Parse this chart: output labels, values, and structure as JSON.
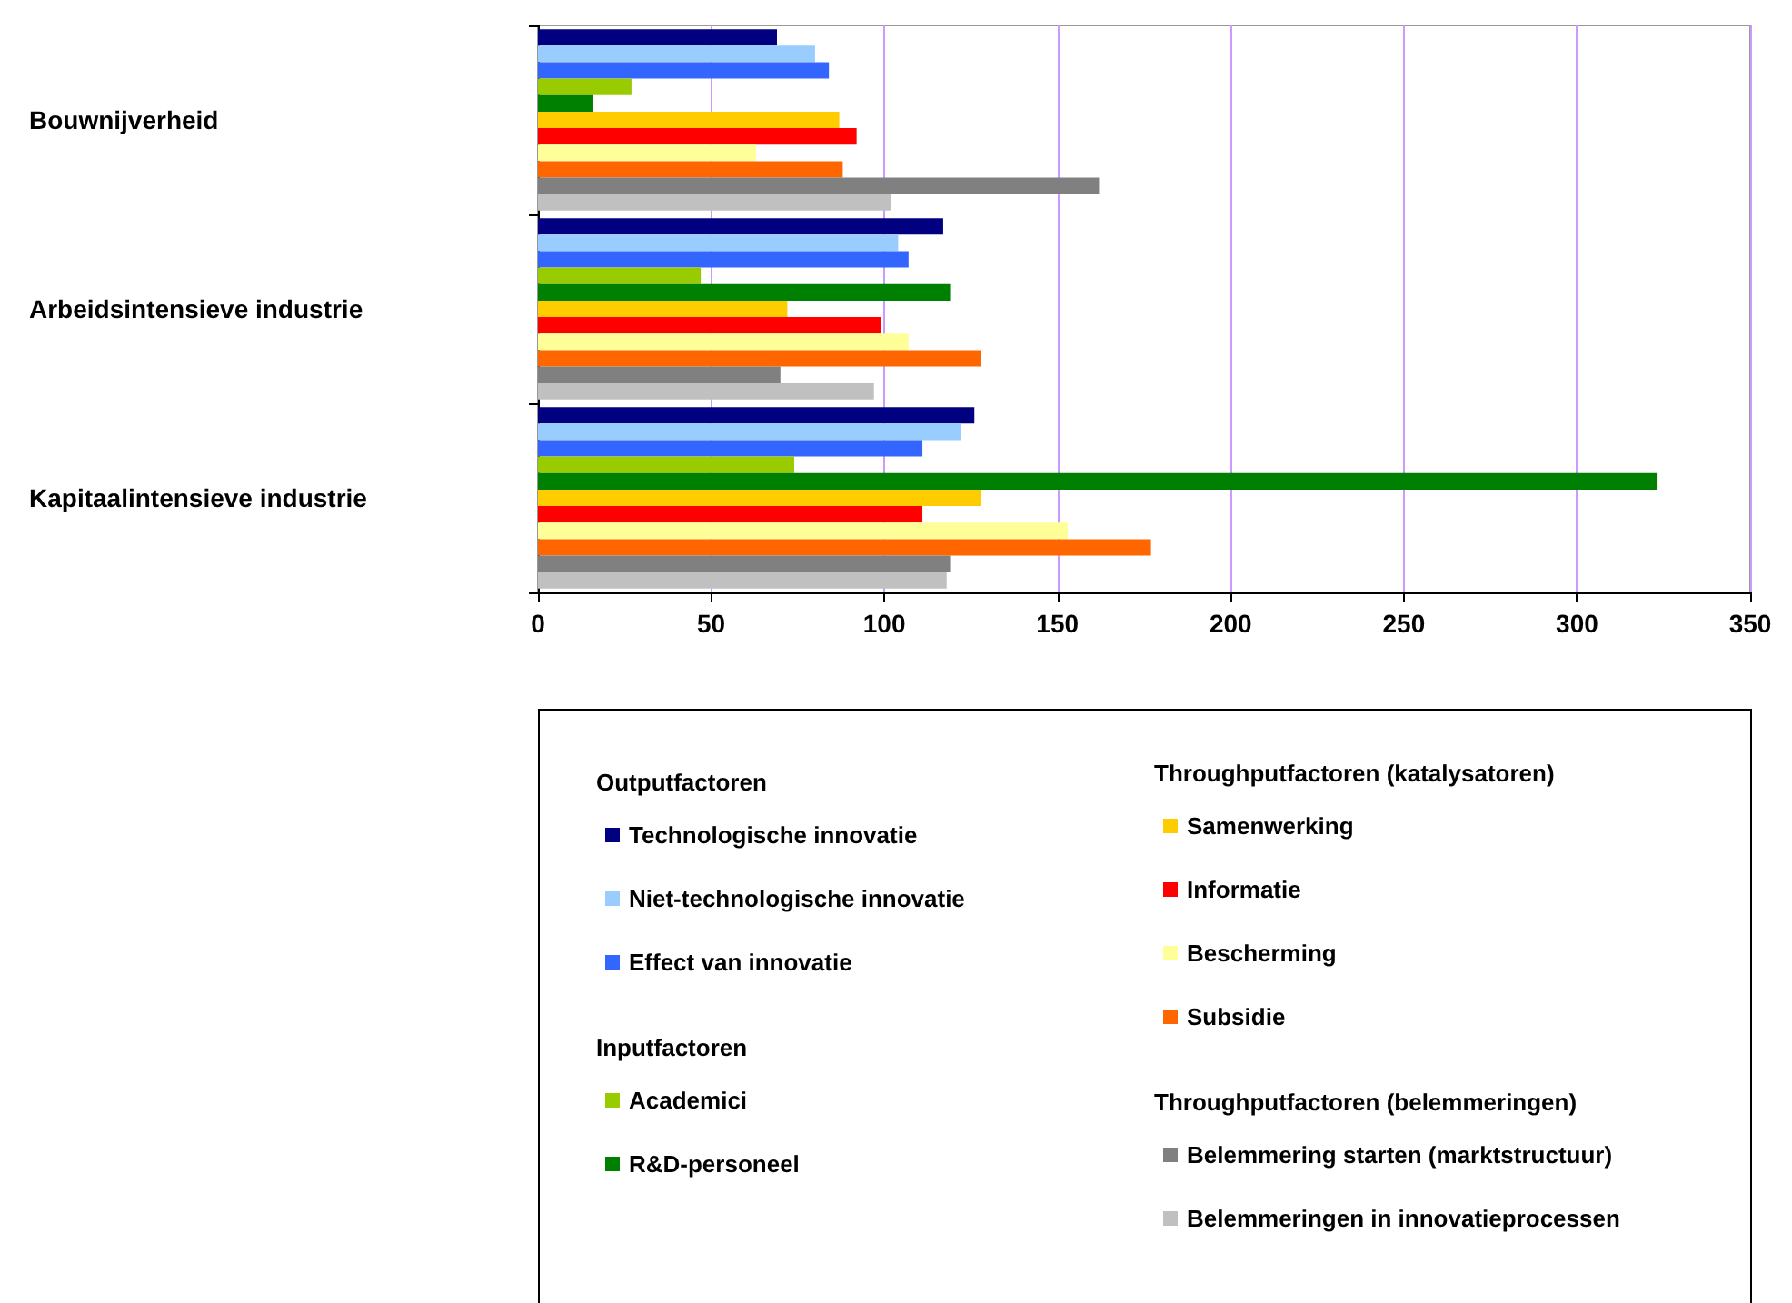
{
  "chart_data": {
    "type": "bar",
    "orientation": "horizontal",
    "categories": [
      "Bouwnijverheid",
      "Arbeidsintensieve industrie",
      "Kapitaalintensieve industrie"
    ],
    "series": [
      {
        "name": "Technologische innovatie",
        "color": "#000080",
        "values": [
          69,
          117,
          126
        ]
      },
      {
        "name": "Niet-technologische innovatie",
        "color": "#99ccff",
        "values": [
          80,
          104,
          122
        ]
      },
      {
        "name": "Effect van innovatie",
        "color": "#3366ff",
        "values": [
          84,
          107,
          111
        ]
      },
      {
        "name": "Academici",
        "color": "#99cc00",
        "values": [
          27,
          47,
          74
        ]
      },
      {
        "name": "R&D-personeel",
        "color": "#008000",
        "values": [
          16,
          119,
          323
        ]
      },
      {
        "name": "Samenwerking",
        "color": "#ffcc00",
        "values": [
          87,
          72,
          128
        ]
      },
      {
        "name": "Informatie",
        "color": "#ff0000",
        "values": [
          92,
          99,
          111
        ]
      },
      {
        "name": "Bescherming",
        "color": "#ffff99",
        "values": [
          63,
          107,
          153
        ]
      },
      {
        "name": "Subsidie",
        "color": "#ff6600",
        "values": [
          88,
          128,
          177
        ]
      },
      {
        "name": "Belemmering starten (marktstructuur)",
        "color": "#808080",
        "values": [
          162,
          70,
          119
        ]
      },
      {
        "name": "Belemmeringen in innovatieprocessen",
        "color": "#c0c0c0",
        "values": [
          102,
          97,
          118
        ]
      }
    ],
    "annotations": [
      "Outputfactoren",
      "Inputfactoren",
      "Throughputfactoren (katalysatoren)",
      "Throughputfactoren (belemmeringen)"
    ],
    "xlim": [
      0,
      350
    ],
    "xticks": [
      0,
      50,
      100,
      150,
      200,
      250,
      300,
      350
    ],
    "grid": "x",
    "legend": "bottom"
  }
}
